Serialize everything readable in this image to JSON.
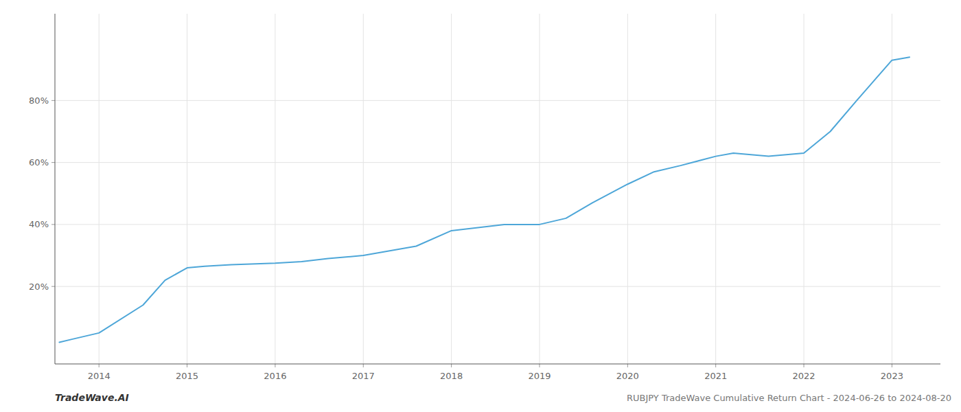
{
  "chart_data": {
    "type": "line",
    "title": "RUBJPY TradeWave Cumulative Return Chart - 2024-06-26 to 2024-08-20",
    "annotations": [
      "TradeWave.AI"
    ],
    "x": [
      2013.55,
      2013.7,
      2014.0,
      2014.5,
      2014.75,
      2015.0,
      2015.2,
      2015.5,
      2016.0,
      2016.3,
      2016.6,
      2017.0,
      2017.3,
      2017.6,
      2018.0,
      2018.3,
      2018.6,
      2019.0,
      2019.3,
      2019.6,
      2020.0,
      2020.3,
      2020.6,
      2021.0,
      2021.2,
      2021.4,
      2021.6,
      2022.0,
      2022.3,
      2022.6,
      2023.0,
      2023.2
    ],
    "values": [
      2,
      3,
      5,
      14,
      22,
      26,
      26.5,
      27,
      27.5,
      28,
      29,
      30,
      31.5,
      33,
      38,
      39,
      40,
      40,
      42,
      47,
      53,
      57,
      59,
      62,
      63,
      62.5,
      62,
      63,
      70,
      80,
      93,
      94
    ],
    "color": "#4da6d8",
    "xlim": [
      2013.5,
      2023.55
    ],
    "xticks": [
      2014,
      2015,
      2016,
      2017,
      2018,
      2019,
      2020,
      2021,
      2022,
      2023
    ],
    "ylim": [
      -5,
      108
    ],
    "yticks": [
      {
        "value": 20,
        "label": "20%"
      },
      {
        "value": 40,
        "label": "40%"
      },
      {
        "value": 60,
        "label": "60%"
      },
      {
        "value": 80,
        "label": "80%"
      }
    ],
    "grid": true
  }
}
